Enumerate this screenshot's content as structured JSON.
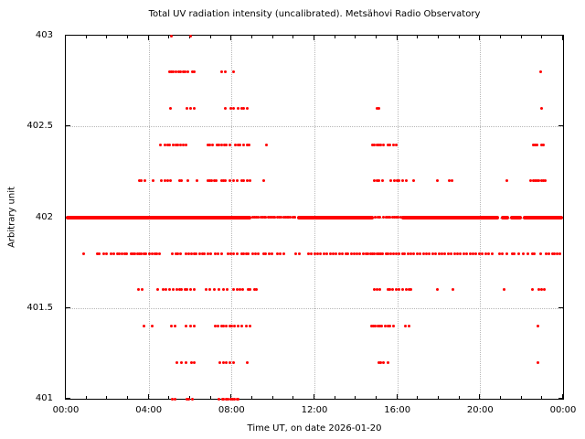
{
  "title": "Total UV radiation intensity (uncalibrated). Metsähovi Radio Observatory",
  "xlabel": "Time UT, on date 2026-01-20",
  "ylabel": "Arbitrary unit",
  "colors": {
    "point": "#ff0000",
    "grid": "#b8b8b8",
    "axis": "#000000",
    "background": "#ffffff"
  },
  "chart_data": {
    "type": "scatter",
    "title": "Total UV radiation intensity (uncalibrated). Metsähovi Radio Observatory",
    "xlabel": "Time UT, on date 2026-01-20",
    "ylabel": "Arbitrary unit",
    "x_axis": {
      "unit": "hours UT",
      "min": 0,
      "max": 24,
      "major_tick_hours": [
        0,
        4,
        8,
        12,
        16,
        20,
        24
      ],
      "major_tick_labels": [
        "00:00",
        "04:00",
        "08:00",
        "12:00",
        "16:00",
        "20:00",
        "00:00"
      ],
      "minor_tick_step_hours": 1,
      "grid_hours": [
        4,
        8,
        12,
        16,
        20
      ]
    },
    "y_axis": {
      "min": 401,
      "max": 403,
      "tick_values": [
        401,
        401.5,
        402,
        402.5,
        403
      ],
      "tick_labels": [
        "401",
        "401.5",
        "402",
        "402.5",
        "403"
      ],
      "grid_values": [
        401.5,
        402,
        402.5
      ]
    },
    "levels": [
      {
        "value": 403.0,
        "hours": [
          5.1,
          6.0
        ]
      },
      {
        "value": 402.8,
        "hours": [
          5.0,
          5.1,
          5.2,
          5.3,
          5.45,
          5.55,
          5.65,
          5.75,
          5.9,
          6.1,
          6.2,
          7.5,
          7.7,
          8.1,
          22.9
        ]
      },
      {
        "value": 402.6,
        "hours": [
          5.05,
          5.85,
          6.0,
          6.2,
          7.7,
          7.95,
          8.1,
          8.3,
          8.5,
          8.6,
          8.75,
          15.0,
          15.1,
          22.95
        ]
      },
      {
        "value": 402.4,
        "hours": [
          4.55,
          4.8,
          4.9,
          5.0,
          5.2,
          5.3,
          5.4,
          5.55,
          5.65,
          5.8,
          6.85,
          6.95,
          7.1,
          7.3,
          7.4,
          7.5,
          7.65,
          7.75,
          7.9,
          8.2,
          8.3,
          8.4,
          8.6,
          8.75,
          8.85,
          9.7,
          14.8,
          14.9,
          15.0,
          15.1,
          15.2,
          15.35,
          15.55,
          15.65,
          15.8,
          15.95,
          22.55,
          22.65,
          22.75,
          22.95,
          23.05
        ]
      },
      {
        "value": 402.2,
        "hours": [
          3.55,
          3.65,
          3.8,
          4.2,
          4.6,
          4.8,
          4.9,
          5.05,
          5.5,
          5.6,
          5.9,
          6.35,
          6.85,
          6.95,
          7.05,
          7.15,
          7.25,
          7.5,
          7.6,
          7.7,
          7.9,
          8.1,
          8.25,
          8.5,
          8.6,
          8.75,
          8.9,
          9.55,
          14.9,
          15.0,
          15.1,
          15.3,
          15.7,
          15.85,
          16.0,
          16.1,
          16.25,
          16.45,
          16.8,
          17.95,
          18.5,
          18.65,
          21.3,
          22.45,
          22.55,
          22.65,
          22.75,
          22.85,
          22.95,
          23.05,
          23.15
        ]
      },
      {
        "value": 402.0,
        "segments": [
          [
            0.0,
            8.95
          ],
          [
            11.15,
            14.88
          ],
          [
            16.2,
            20.9
          ],
          [
            21.0,
            21.4
          ],
          [
            21.45,
            22.0
          ],
          [
            22.05,
            23.98
          ]
        ],
        "hours": [
          9.0,
          9.1,
          9.2,
          9.3,
          9.4,
          9.5,
          9.6,
          9.65,
          9.75,
          9.85,
          9.95,
          10.05,
          10.1,
          10.2,
          10.3,
          10.4,
          10.5,
          10.6,
          10.7,
          10.75,
          10.85,
          10.95,
          11.05,
          14.95,
          15.05,
          15.15,
          15.35,
          15.45,
          15.55,
          15.65,
          15.75,
          15.85,
          15.95,
          16.05,
          16.15
        ]
      },
      {
        "value": 401.8,
        "hours": [
          0.85,
          1.5,
          1.6,
          1.85,
          1.95,
          2.2,
          2.3,
          2.5,
          2.6,
          2.7,
          2.85,
          2.95,
          3.15,
          3.25,
          3.35,
          3.45,
          3.55,
          3.65,
          3.75,
          3.85,
          4.05,
          4.15,
          4.3,
          4.4,
          4.5,
          5.15,
          5.3,
          5.4,
          5.55,
          5.8,
          5.95,
          6.05,
          6.2,
          6.3,
          6.45,
          6.6,
          6.7,
          6.85,
          7.0,
          7.2,
          7.35,
          7.5,
          7.85,
          7.95,
          8.1,
          8.25,
          8.5,
          8.6,
          8.7,
          8.8,
          9.0,
          9.15,
          9.3,
          9.55,
          9.65,
          9.8,
          9.95,
          10.2,
          10.35,
          10.5,
          11.1,
          11.25,
          11.7,
          11.85,
          12.0,
          12.15,
          12.3,
          12.45,
          12.6,
          12.75,
          12.9,
          13.05,
          13.2,
          13.35,
          13.5,
          13.6,
          13.8,
          13.9,
          14.05,
          14.2,
          14.35,
          14.5,
          14.6,
          14.7,
          14.8,
          14.9,
          15.0,
          15.1,
          15.2,
          15.3,
          15.45,
          15.55,
          15.7,
          15.8,
          15.95,
          16.1,
          16.25,
          16.35,
          16.5,
          16.65,
          16.8,
          16.95,
          17.1,
          17.25,
          17.4,
          17.55,
          17.7,
          17.85,
          18.0,
          18.15,
          18.3,
          18.45,
          18.6,
          18.75,
          18.9,
          19.05,
          19.2,
          19.35,
          19.5,
          19.65,
          19.8,
          19.95,
          20.1,
          20.25,
          20.4,
          20.6,
          20.95,
          21.05,
          21.3,
          21.55,
          21.65,
          21.85,
          22.1,
          22.3,
          22.5,
          22.6,
          22.9,
          23.2,
          23.3,
          23.5,
          23.6,
          23.7,
          23.85
        ]
      },
      {
        "value": 401.6,
        "hours": [
          3.5,
          3.7,
          4.45,
          4.7,
          4.85,
          5.0,
          5.2,
          5.35,
          5.5,
          5.6,
          5.75,
          5.85,
          6.0,
          6.2,
          6.75,
          6.95,
          7.15,
          7.4,
          7.6,
          7.8,
          8.1,
          8.25,
          8.4,
          8.55,
          8.8,
          8.9,
          9.1,
          9.2,
          14.9,
          15.0,
          15.15,
          15.55,
          15.65,
          15.75,
          15.95,
          16.1,
          16.25,
          16.45,
          16.55,
          16.65,
          17.95,
          18.7,
          21.15,
          22.5,
          22.85,
          22.95,
          23.1
        ]
      },
      {
        "value": 401.4,
        "hours": [
          3.75,
          4.15,
          5.1,
          5.25,
          5.8,
          6.0,
          6.2,
          7.2,
          7.35,
          7.5,
          7.6,
          7.75,
          7.9,
          8.0,
          8.15,
          8.3,
          8.5,
          8.7,
          8.9,
          14.75,
          14.85,
          14.95,
          15.05,
          15.15,
          15.25,
          15.4,
          15.55,
          15.65,
          15.8,
          16.4,
          16.55,
          22.8
        ]
      },
      {
        "value": 401.2,
        "hours": [
          5.35,
          5.6,
          5.8,
          6.05,
          6.2,
          7.45,
          7.6,
          7.75,
          7.9,
          8.1,
          8.75,
          15.1,
          15.2,
          15.35,
          15.55,
          22.8
        ]
      },
      {
        "value": 401.0,
        "hours": [
          5.15,
          5.25,
          5.85,
          5.95,
          6.1,
          7.4,
          7.55,
          7.6,
          7.75,
          7.85,
          7.95,
          8.05,
          8.15,
          8.25,
          8.3
        ]
      }
    ]
  }
}
